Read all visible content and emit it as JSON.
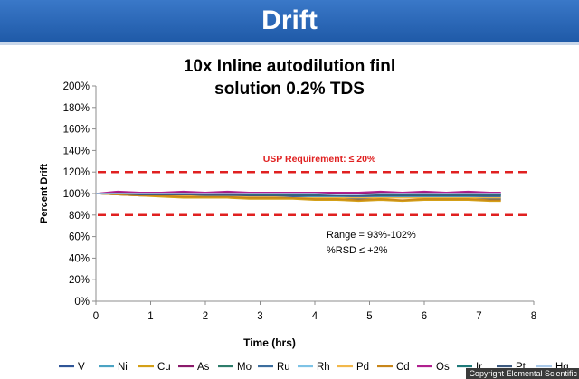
{
  "header": {
    "title": "Drift"
  },
  "chart_data": {
    "type": "line",
    "title_lines": [
      "10x Inline autodilution finl",
      "solution 0.2% TDS"
    ],
    "xlabel": "Time (hrs)",
    "ylabel": "Percent Drift",
    "xlim": [
      0,
      8
    ],
    "ylim": [
      0,
      200
    ],
    "x_ticks": [
      "0",
      "1",
      "2",
      "3",
      "4",
      "5",
      "6",
      "7",
      "8"
    ],
    "y_ticks": [
      "0%",
      "20%",
      "40%",
      "60%",
      "80%",
      "100%",
      "120%",
      "140%",
      "160%",
      "180%",
      "200%"
    ],
    "grid": false,
    "legend_position": "bottom",
    "limit_lines": [
      120,
      80
    ],
    "limit_label": "USP Requirement: ≤ 20%",
    "annotations": [
      "Range = 93%-102%",
      "%RSD ≤ +2%"
    ],
    "x": [
      0,
      0.4,
      0.8,
      1.2,
      1.6,
      2.0,
      2.4,
      2.8,
      3.2,
      3.6,
      4.0,
      4.4,
      4.8,
      5.2,
      5.6,
      6.0,
      6.4,
      6.8,
      7.2,
      7.4
    ],
    "series": [
      {
        "name": "V",
        "color": "#2f5597",
        "values": [
          100,
          99,
          98,
          98,
          97,
          97,
          98,
          97,
          97,
          97,
          96,
          96,
          95,
          96,
          96,
          96,
          96,
          96,
          95,
          95
        ]
      },
      {
        "name": "Ni",
        "color": "#4ba3c3",
        "values": [
          100,
          99,
          99,
          98,
          98,
          98,
          98,
          98,
          98,
          98,
          97,
          97,
          97,
          97,
          97,
          97,
          97,
          97,
          96,
          96
        ]
      },
      {
        "name": "Cu",
        "color": "#d4a017",
        "values": [
          100,
          99,
          98,
          97,
          96,
          96,
          96,
          95,
          95,
          95,
          94,
          94,
          93,
          94,
          93,
          94,
          94,
          94,
          93,
          93
        ]
      },
      {
        "name": "As",
        "color": "#8b1a6b",
        "values": [
          100,
          101,
          101,
          100,
          101,
          100,
          101,
          100,
          100,
          100,
          100,
          100,
          100,
          101,
          100,
          101,
          100,
          101,
          100,
          100
        ]
      },
      {
        "name": "Mo",
        "color": "#2e7d6b",
        "values": [
          100,
          100,
          100,
          99,
          100,
          99,
          99,
          99,
          99,
          99,
          99,
          98,
          98,
          99,
          98,
          99,
          99,
          99,
          99,
          99
        ]
      },
      {
        "name": "Ru",
        "color": "#3c6e9e",
        "values": [
          100,
          99,
          99,
          99,
          99,
          98,
          98,
          98,
          98,
          98,
          98,
          98,
          97,
          98,
          98,
          98,
          98,
          98,
          97,
          97
        ]
      },
      {
        "name": "Rh",
        "color": "#7ec3e6",
        "values": [
          100,
          100,
          99,
          99,
          99,
          99,
          99,
          99,
          98,
          98,
          98,
          98,
          98,
          98,
          98,
          98,
          98,
          98,
          98,
          98
        ]
      },
      {
        "name": "Pd",
        "color": "#f2b84b",
        "values": [
          100,
          99,
          99,
          98,
          98,
          97,
          97,
          97,
          97,
          96,
          96,
          96,
          96,
          96,
          96,
          96,
          96,
          96,
          96,
          96
        ]
      },
      {
        "name": "Cd",
        "color": "#c8861a",
        "values": [
          100,
          99,
          98,
          98,
          97,
          97,
          97,
          96,
          96,
          96,
          95,
          95,
          94,
          95,
          94,
          95,
          95,
          95,
          94,
          94
        ]
      },
      {
        "name": "Os",
        "color": "#b0208f",
        "values": [
          100,
          102,
          101,
          101,
          102,
          101,
          102,
          101,
          101,
          101,
          101,
          101,
          101,
          102,
          101,
          102,
          101,
          102,
          101,
          101
        ]
      },
      {
        "name": "Ir",
        "color": "#1f7a7a",
        "values": [
          100,
          100,
          100,
          100,
          100,
          99,
          99,
          99,
          99,
          99,
          99,
          99,
          99,
          99,
          99,
          99,
          99,
          99,
          99,
          99
        ]
      },
      {
        "name": "Pt",
        "color": "#3d5a80",
        "values": [
          100,
          100,
          99,
          99,
          99,
          99,
          99,
          98,
          98,
          98,
          98,
          98,
          98,
          98,
          98,
          98,
          98,
          98,
          98,
          98
        ]
      },
      {
        "name": "Hg",
        "color": "#a9c8e8",
        "values": [
          100,
          100,
          100,
          100,
          100,
          100,
          100,
          100,
          100,
          100,
          100,
          99,
          99,
          100,
          100,
          100,
          100,
          100,
          100,
          100
        ]
      }
    ]
  },
  "footer": {
    "copyright": "Copyright Elemental Scientific"
  }
}
